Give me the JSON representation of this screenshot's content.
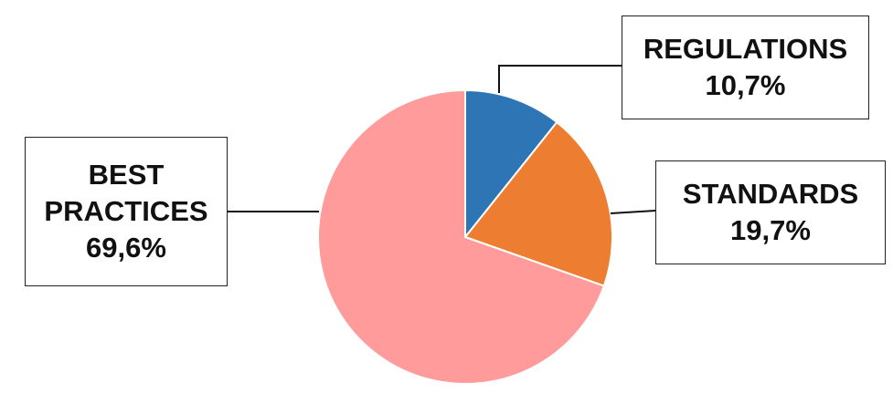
{
  "chart_data": {
    "type": "pie",
    "start_angle": "top, clockwise",
    "slices": [
      {
        "label": "REGULATIONS",
        "value": 10.7,
        "display": "10,7%",
        "color": "#2E75B6"
      },
      {
        "label": "STANDARDS",
        "value": 19.7,
        "display": "19,7%",
        "color": "#ED7D31"
      },
      {
        "label": "BEST PRACTICES",
        "value": 69.6,
        "display": "69,6%",
        "color": "#FF9B9B"
      }
    ],
    "legend": "none",
    "data_labels": "callout boxes"
  }
}
